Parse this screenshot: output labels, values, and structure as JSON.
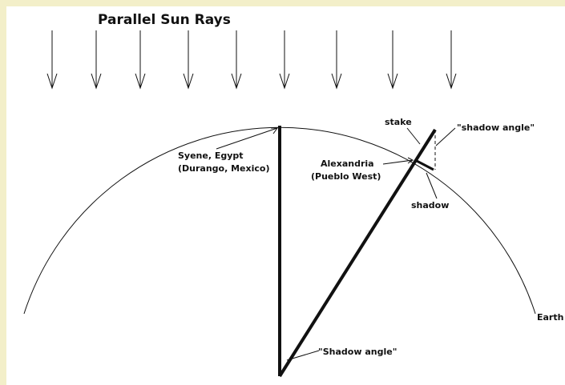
{
  "title": "Parallel Sun Rays",
  "labels": {
    "syene": "Syene, Egypt",
    "syene_alt": "(Durango, Mexico)",
    "alexandria": "Alexandria",
    "alexandria_alt": "(Pueblo West)",
    "stake": "stake",
    "shadow_angle_top": "\"shadow angle\"",
    "shadow": "shadow",
    "earth": "Earth",
    "shadow_angle_center": "\"Shadow angle\""
  }
}
